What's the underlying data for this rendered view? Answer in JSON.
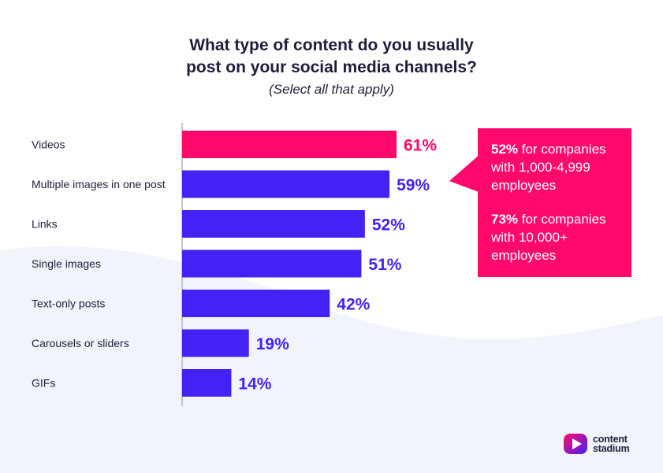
{
  "title_line1": "What type of content do you usually",
  "title_line2": "post on your social media channels?",
  "subtitle": "(Select all that apply)",
  "colors": {
    "highlight": "#ff0a6c",
    "bar": "#4421f5",
    "text": "#1e1e3c",
    "background_wave": "#f1f4fb"
  },
  "chart_data": {
    "type": "bar",
    "orientation": "horizontal",
    "categories": [
      "Videos",
      "Multiple images in one post",
      "Links",
      "Single images",
      "Text-only posts",
      "Carousels or sliders",
      "GIFs"
    ],
    "values": [
      61,
      59,
      52,
      51,
      42,
      19,
      14
    ],
    "value_labels": [
      "61%",
      "59%",
      "52%",
      "51%",
      "42%",
      "19%",
      "14%"
    ],
    "unit": "%",
    "highlighted_category": "Videos",
    "xlim": [
      0,
      100
    ],
    "grid": false,
    "legend": "none"
  },
  "callout": {
    "item1_value": "52%",
    "item1_text": " for companies with 1,000-4,999 employees",
    "item2_value": "73%",
    "item2_text": " for companies with 10,000+ employees"
  },
  "logo": {
    "line1": "content",
    "line2": "stadium",
    "icon": "play-icon"
  }
}
